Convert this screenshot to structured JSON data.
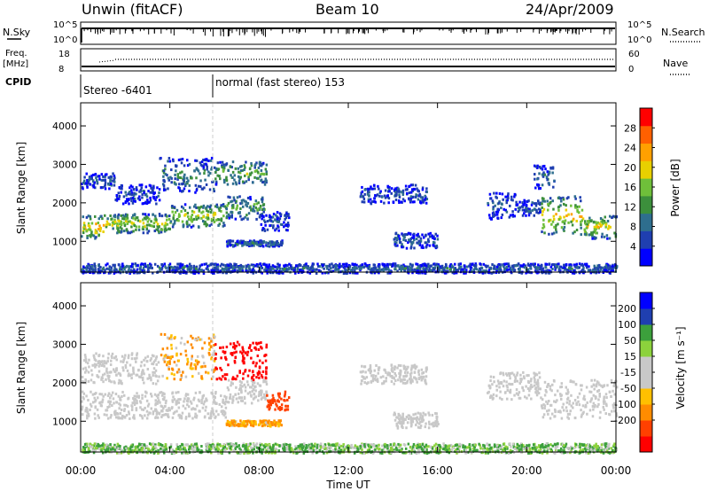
{
  "header": {
    "title": "Unwin (fitACF)",
    "beam": "Beam 10",
    "date": "24/Apr/2009"
  },
  "noise_panel": {
    "left_label": "N.Sky",
    "right_label": "N.Search",
    "left_ticks": [
      "10^5",
      "10^0"
    ],
    "right_ticks": [
      "10^5",
      "10^0"
    ]
  },
  "freq_panel": {
    "left_label_1": "Freq.",
    "left_label_2": "[MHz]",
    "right_label": "Nave",
    "left_ticks": [
      "18",
      "8"
    ],
    "right_ticks": [
      "60",
      "0"
    ]
  },
  "cpid": {
    "label": "CPID",
    "segment_1": "Stereo -6401",
    "segment_2": "normal (fast stereo) 153"
  },
  "chart_data": [
    {
      "type": "heatmap",
      "name": "power",
      "ylabel": "Slant Range [km]",
      "yticks": [
        "1000",
        "2000",
        "3000",
        "4000"
      ],
      "ylim": [
        200,
        4600
      ],
      "xlim": [
        0,
        24
      ],
      "colorbar": {
        "label": "Power [dB]",
        "ticks": [
          "28",
          "24",
          "20",
          "16",
          "12",
          "8",
          "4"
        ],
        "range": [
          0,
          32
        ],
        "colors": [
          "#0000ff",
          "#1f3fb0",
          "#2e6e8e",
          "#3c8f3c",
          "#6fbf3a",
          "#e8d000",
          "#ffa000",
          "#ff6000",
          "#ff0000"
        ]
      },
      "regions": [
        {
          "t0": 0.0,
          "t1": 1.0,
          "r_low": 1100,
          "r_high": 1700,
          "level": 20
        },
        {
          "t0": 1.0,
          "t1": 4.0,
          "r_low": 1250,
          "r_high": 1750,
          "level": 17
        },
        {
          "t0": 4.0,
          "t1": 6.5,
          "r_low": 1400,
          "r_high": 2000,
          "level": 16
        },
        {
          "t0": 6.5,
          "t1": 8.2,
          "r_low": 1600,
          "r_high": 2200,
          "level": 12
        },
        {
          "t0": 0.0,
          "t1": 1.5,
          "r_low": 2400,
          "r_high": 2800,
          "level": 6
        },
        {
          "t0": 1.5,
          "t1": 3.5,
          "r_low": 2000,
          "r_high": 2500,
          "level": 5
        },
        {
          "t0": 3.5,
          "t1": 6.0,
          "r_low": 2300,
          "r_high": 3200,
          "level": 9
        },
        {
          "t0": 6.0,
          "t1": 8.3,
          "r_low": 2500,
          "r_high": 3100,
          "level": 13
        },
        {
          "t0": 8.0,
          "t1": 9.3,
          "r_low": 1300,
          "r_high": 1800,
          "level": 6
        },
        {
          "t0": 6.5,
          "t1": 9.0,
          "r_low": 900,
          "r_high": 1050,
          "level": 8
        },
        {
          "t0": 12.5,
          "t1": 15.5,
          "r_low": 2000,
          "r_high": 2500,
          "level": 6
        },
        {
          "t0": 14.0,
          "t1": 16.0,
          "r_low": 850,
          "r_high": 1250,
          "level": 7
        },
        {
          "t0": 18.2,
          "t1": 19.5,
          "r_low": 1600,
          "r_high": 2300,
          "level": 5
        },
        {
          "t0": 19.5,
          "t1": 20.6,
          "r_low": 1700,
          "r_high": 2100,
          "level": 6
        },
        {
          "t0": 20.6,
          "t1": 22.5,
          "r_low": 1200,
          "r_high": 2200,
          "level": 19
        },
        {
          "t0": 22.5,
          "t1": 24.0,
          "r_low": 1100,
          "r_high": 1700,
          "level": 17
        },
        {
          "t0": 20.3,
          "t1": 21.2,
          "r_low": 2400,
          "r_high": 3000,
          "level": 7
        },
        {
          "t0": 0.0,
          "t1": 24.0,
          "r_low": 200,
          "r_high": 450,
          "level": 7
        }
      ]
    },
    {
      "type": "heatmap",
      "name": "velocity",
      "ylabel": "Slant Range [km]",
      "yticks": [
        "1000",
        "2000",
        "3000",
        "4000"
      ],
      "ylim": [
        200,
        4600
      ],
      "xlim": [
        0,
        24
      ],
      "xticks": [
        "00:00",
        "04:00",
        "08:00",
        "12:00",
        "16:00",
        "20:00",
        "00:00"
      ],
      "xlabel": "Time UT",
      "colorbar": {
        "label": "Velocity [m s⁻¹]",
        "ticks": [
          "200",
          "100",
          "50",
          "15",
          "-15",
          "-50",
          "-100",
          "-200"
        ],
        "colors": [
          "#ff0000",
          "#ff4000",
          "#ff8c00",
          "#ffc000",
          "#c8c8c8",
          "#c8c8c8",
          "#8cd23c",
          "#3ca03c",
          "#1f3fb0",
          "#0000ff"
        ]
      },
      "regions": [
        {
          "t0": 0.0,
          "t1": 6.5,
          "r_low": 1100,
          "r_high": 1800,
          "vel": 0
        },
        {
          "t0": 6.5,
          "t1": 8.3,
          "r_low": 1500,
          "r_high": 2100,
          "vel": 0
        },
        {
          "t0": 0.0,
          "t1": 3.5,
          "r_low": 2000,
          "r_high": 2800,
          "vel": 0
        },
        {
          "t0": 3.5,
          "t1": 6.0,
          "r_low": 2100,
          "r_high": 3300,
          "vel": -30
        },
        {
          "t0": 6.0,
          "t1": 8.3,
          "r_low": 2100,
          "r_high": 3100,
          "vel": -220
        },
        {
          "t0": 8.3,
          "t1": 9.3,
          "r_low": 1300,
          "r_high": 1800,
          "vel": -120
        },
        {
          "t0": 6.5,
          "t1": 9.0,
          "r_low": 900,
          "r_high": 1050,
          "vel": -40
        },
        {
          "t0": 12.5,
          "t1": 15.5,
          "r_low": 2000,
          "r_high": 2500,
          "vel": 0
        },
        {
          "t0": 14.0,
          "t1": 16.0,
          "r_low": 850,
          "r_high": 1250,
          "vel": 0
        },
        {
          "t0": 18.2,
          "t1": 20.6,
          "r_low": 1600,
          "r_high": 2300,
          "vel": 0
        },
        {
          "t0": 20.6,
          "t1": 24.0,
          "r_low": 1100,
          "r_high": 2100,
          "vel": 0
        },
        {
          "t0": 0.0,
          "t1": 24.0,
          "r_low": 200,
          "r_high": 450,
          "vel": 30
        }
      ]
    }
  ]
}
